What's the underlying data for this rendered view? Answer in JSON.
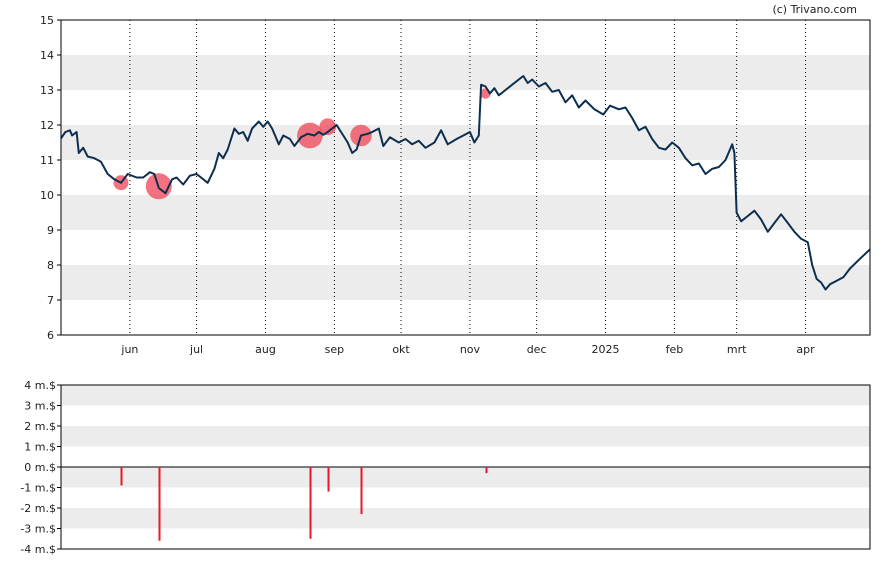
{
  "watermark": "(c) Trivano.com",
  "colors": {
    "price_line": "#0d2e4f",
    "band": "#ececec",
    "vgrid": "#000000",
    "bubble": "#f04a5c",
    "bar": "#e8192c",
    "zero": "#000000"
  },
  "chart_data": [
    {
      "id": "price",
      "type": "line",
      "ylim": [
        6,
        15
      ],
      "yticks": [
        "6",
        "7",
        "8",
        "9",
        "10",
        "11",
        "12",
        "13",
        "14",
        "15"
      ],
      "grid": "alternating horizontal bands, dotted vertical month lines",
      "xlim": [
        "2024-05-01",
        "2025-04-30"
      ],
      "months": [
        {
          "label": "jun",
          "date": "2024-06-01"
        },
        {
          "label": "jul",
          "date": "2024-07-01"
        },
        {
          "label": "aug",
          "date": "2024-08-01"
        },
        {
          "label": "sep",
          "date": "2024-09-01"
        },
        {
          "label": "okt",
          "date": "2024-10-01"
        },
        {
          "label": "nov",
          "date": "2024-11-01"
        },
        {
          "label": "dec",
          "date": "2024-12-01"
        },
        {
          "label": "2025",
          "date": "2025-01-01"
        },
        {
          "label": "feb",
          "date": "2025-02-01"
        },
        {
          "label": "mrt",
          "date": "2025-03-01"
        },
        {
          "label": "apr",
          "date": "2025-04-01"
        }
      ],
      "series": [
        {
          "points": [
            [
              "2024-05-01",
              11.62
            ],
            [
              "2024-05-03",
              11.8
            ],
            [
              "2024-05-05",
              11.85
            ],
            [
              "2024-05-06",
              11.7
            ],
            [
              "2024-05-08",
              11.8
            ],
            [
              "2024-05-09",
              11.2
            ],
            [
              "2024-05-11",
              11.35
            ],
            [
              "2024-05-13",
              11.1
            ],
            [
              "2024-05-16",
              11.05
            ],
            [
              "2024-05-19",
              10.95
            ],
            [
              "2024-05-22",
              10.6
            ],
            [
              "2024-05-25",
              10.45
            ],
            [
              "2024-05-28",
              10.35
            ],
            [
              "2024-05-31",
              10.6
            ],
            [
              "2024-06-04",
              10.5
            ],
            [
              "2024-06-07",
              10.5
            ],
            [
              "2024-06-10",
              10.65
            ],
            [
              "2024-06-12",
              10.6
            ],
            [
              "2024-06-14",
              10.2
            ],
            [
              "2024-06-17",
              10.05
            ],
            [
              "2024-06-20",
              10.45
            ],
            [
              "2024-06-22",
              10.5
            ],
            [
              "2024-06-25",
              10.3
            ],
            [
              "2024-06-28",
              10.55
            ],
            [
              "2024-07-01",
              10.6
            ],
            [
              "2024-07-03",
              10.5
            ],
            [
              "2024-07-06",
              10.35
            ],
            [
              "2024-07-09",
              10.75
            ],
            [
              "2024-07-11",
              11.2
            ],
            [
              "2024-07-13",
              11.05
            ],
            [
              "2024-07-15",
              11.3
            ],
            [
              "2024-07-18",
              11.9
            ],
            [
              "2024-07-20",
              11.75
            ],
            [
              "2024-07-22",
              11.8
            ],
            [
              "2024-07-24",
              11.55
            ],
            [
              "2024-07-26",
              11.9
            ],
            [
              "2024-07-29",
              12.1
            ],
            [
              "2024-07-31",
              11.95
            ],
            [
              "2024-08-02",
              12.1
            ],
            [
              "2024-08-04",
              11.9
            ],
            [
              "2024-08-07",
              11.45
            ],
            [
              "2024-08-09",
              11.7
            ],
            [
              "2024-08-12",
              11.6
            ],
            [
              "2024-08-14",
              11.4
            ],
            [
              "2024-08-17",
              11.65
            ],
            [
              "2024-08-20",
              11.75
            ],
            [
              "2024-08-23",
              11.7
            ],
            [
              "2024-08-25",
              11.8
            ],
            [
              "2024-08-27",
              11.72
            ],
            [
              "2024-08-29",
              11.8
            ],
            [
              "2024-08-31",
              11.9
            ],
            [
              "2024-09-02",
              12.0
            ],
            [
              "2024-09-05",
              11.7
            ],
            [
              "2024-09-07",
              11.5
            ],
            [
              "2024-09-09",
              11.2
            ],
            [
              "2024-09-11",
              11.3
            ],
            [
              "2024-09-13",
              11.7
            ],
            [
              "2024-09-16",
              11.75
            ],
            [
              "2024-09-18",
              11.8
            ],
            [
              "2024-09-21",
              11.9
            ],
            [
              "2024-09-23",
              11.4
            ],
            [
              "2024-09-26",
              11.65
            ],
            [
              "2024-09-30",
              11.5
            ],
            [
              "2024-10-03",
              11.6
            ],
            [
              "2024-10-06",
              11.45
            ],
            [
              "2024-10-09",
              11.55
            ],
            [
              "2024-10-12",
              11.35
            ],
            [
              "2024-10-16",
              11.5
            ],
            [
              "2024-10-19",
              11.85
            ],
            [
              "2024-10-22",
              11.45
            ],
            [
              "2024-10-26",
              11.6
            ],
            [
              "2024-10-29",
              11.7
            ],
            [
              "2024-11-01",
              11.8
            ],
            [
              "2024-11-03",
              11.5
            ],
            [
              "2024-11-05",
              11.7
            ],
            [
              "2024-11-06",
              13.15
            ],
            [
              "2024-11-08",
              13.1
            ],
            [
              "2024-11-10",
              12.9
            ],
            [
              "2024-11-12",
              13.05
            ],
            [
              "2024-11-14",
              12.85
            ],
            [
              "2024-11-17",
              13.0
            ],
            [
              "2024-11-20",
              13.15
            ],
            [
              "2024-11-23",
              13.3
            ],
            [
              "2024-11-25",
              13.4
            ],
            [
              "2024-11-27",
              13.2
            ],
            [
              "2024-11-29",
              13.3
            ],
            [
              "2024-12-02",
              13.1
            ],
            [
              "2024-12-05",
              13.2
            ],
            [
              "2024-12-08",
              12.95
            ],
            [
              "2024-12-11",
              13.0
            ],
            [
              "2024-12-14",
              12.65
            ],
            [
              "2024-12-17",
              12.85
            ],
            [
              "2024-12-20",
              12.5
            ],
            [
              "2024-12-23",
              12.7
            ],
            [
              "2024-12-27",
              12.45
            ],
            [
              "2024-12-31",
              12.3
            ],
            [
              "2025-01-03",
              12.55
            ],
            [
              "2025-01-07",
              12.45
            ],
            [
              "2025-01-10",
              12.5
            ],
            [
              "2025-01-13",
              12.2
            ],
            [
              "2025-01-16",
              11.85
            ],
            [
              "2025-01-19",
              11.95
            ],
            [
              "2025-01-22",
              11.6
            ],
            [
              "2025-01-25",
              11.35
            ],
            [
              "2025-01-28",
              11.3
            ],
            [
              "2025-01-31",
              11.5
            ],
            [
              "2025-02-03",
              11.35
            ],
            [
              "2025-02-06",
              11.05
            ],
            [
              "2025-02-09",
              10.85
            ],
            [
              "2025-02-12",
              10.9
            ],
            [
              "2025-02-15",
              10.6
            ],
            [
              "2025-02-18",
              10.75
            ],
            [
              "2025-02-21",
              10.8
            ],
            [
              "2025-02-24",
              11.0
            ],
            [
              "2025-02-26",
              11.3
            ],
            [
              "2025-02-27",
              11.45
            ],
            [
              "2025-02-28",
              11.2
            ],
            [
              "2025-03-01",
              9.5
            ],
            [
              "2025-03-03",
              9.25
            ],
            [
              "2025-03-06",
              9.4
            ],
            [
              "2025-03-09",
              9.55
            ],
            [
              "2025-03-12",
              9.3
            ],
            [
              "2025-03-15",
              8.95
            ],
            [
              "2025-03-18",
              9.2
            ],
            [
              "2025-03-21",
              9.45
            ],
            [
              "2025-03-24",
              9.2
            ],
            [
              "2025-03-27",
              8.95
            ],
            [
              "2025-03-30",
              8.75
            ],
            [
              "2025-04-02",
              8.65
            ],
            [
              "2025-04-04",
              8.0
            ],
            [
              "2025-04-06",
              7.6
            ],
            [
              "2025-04-08",
              7.5
            ],
            [
              "2025-04-10",
              7.3
            ],
            [
              "2025-04-12",
              7.45
            ],
            [
              "2025-04-15",
              7.55
            ],
            [
              "2025-04-18",
              7.65
            ],
            [
              "2025-04-21",
              7.9
            ],
            [
              "2025-04-25",
              8.15
            ],
            [
              "2025-04-30",
              8.45
            ]
          ]
        }
      ],
      "bubbles": [
        {
          "date": "2024-05-28",
          "value": 10.35,
          "magnitude": 0.9
        },
        {
          "date": "2024-06-14",
          "value": 10.25,
          "magnitude": 3.6
        },
        {
          "date": "2024-08-21",
          "value": 11.7,
          "magnitude": 3.5
        },
        {
          "date": "2024-08-29",
          "value": 11.95,
          "magnitude": 1.2
        },
        {
          "date": "2024-09-13",
          "value": 11.7,
          "magnitude": 2.3
        },
        {
          "date": "2024-11-08",
          "value": 12.9,
          "magnitude": 0.3
        }
      ]
    },
    {
      "id": "volume",
      "type": "bar",
      "ylim": [
        -4,
        4
      ],
      "yticks": [
        "-4 m.$",
        "-3 m.$",
        "-2 m.$",
        "-1 m.$",
        "0 m.$",
        "1 m.$",
        "2 m.$",
        "3 m.$",
        "4 m.$"
      ],
      "xlim": [
        "2024-05-01",
        "2025-04-30"
      ],
      "bars": [
        {
          "date": "2024-05-28",
          "value": -0.9
        },
        {
          "date": "2024-06-14",
          "value": -3.6
        },
        {
          "date": "2024-08-21",
          "value": -3.5
        },
        {
          "date": "2024-08-29",
          "value": -1.2
        },
        {
          "date": "2024-09-13",
          "value": -2.3
        },
        {
          "date": "2024-11-08",
          "value": -0.3
        }
      ]
    }
  ]
}
